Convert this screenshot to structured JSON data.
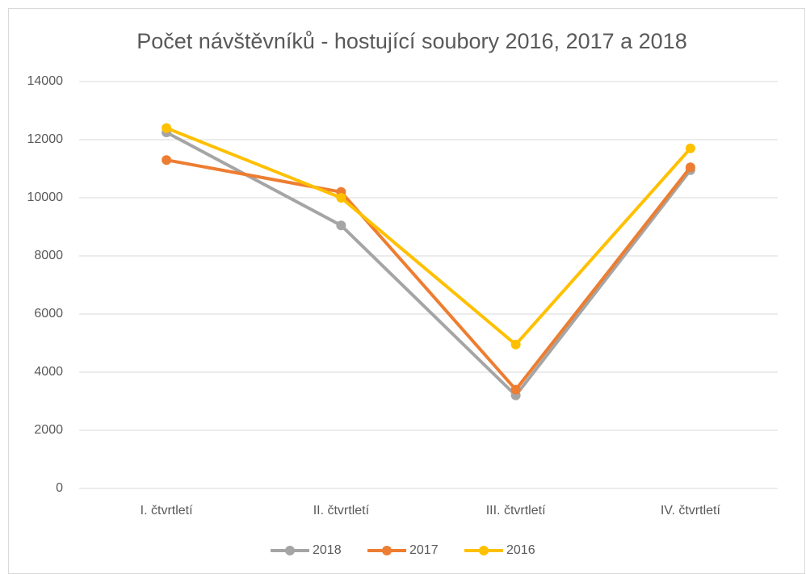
{
  "chart_data": {
    "type": "line",
    "title": "Počet návštěvníků - hostující soubory 2016, 2017 a 2018",
    "categories": [
      "I. čtvrtletí",
      "II. čtvrtletí",
      "III. čtvrtletí",
      "IV. čtvrtletí"
    ],
    "series": [
      {
        "name": "2018",
        "color": "#a5a5a5",
        "values": [
          12250,
          9050,
          3200,
          10950
        ]
      },
      {
        "name": "2017",
        "color": "#ed7d31",
        "values": [
          11300,
          10200,
          3400,
          11050
        ]
      },
      {
        "name": "2016",
        "color": "#ffc000",
        "values": [
          12400,
          10000,
          4950,
          11700
        ]
      }
    ],
    "ylim": [
      0,
      14000
    ],
    "yticks": [
      0,
      2000,
      4000,
      6000,
      8000,
      10000,
      12000,
      14000
    ],
    "grid": true,
    "legend": "bottom"
  }
}
